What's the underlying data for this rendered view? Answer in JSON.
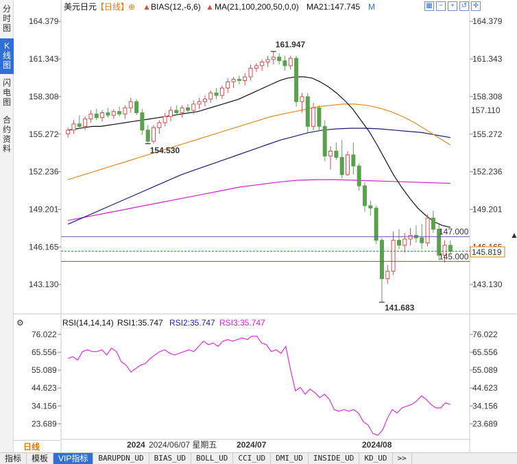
{
  "side_tabs": [
    {
      "label": "分时图",
      "active": false
    },
    {
      "label": "K线图",
      "active": true
    },
    {
      "label": "闪电图",
      "active": false
    },
    {
      "label": "合约资料",
      "active": false
    }
  ],
  "header": {
    "symbol": "美元日元",
    "period": "【日线】",
    "bias": "BIAS(12,-6,6)",
    "ma": "MA(21,100,200,50,0,0)",
    "ma21": "MA21:147.745",
    "m_label": "M",
    "icon_names": [
      "grid-icon",
      "zoom-out-icon",
      "zoom-in-icon",
      "restore-icon",
      "crosshair-icon"
    ]
  },
  "price_axis": {
    "ticks": [
      164.379,
      161.343,
      158.308,
      155.272,
      152.236,
      149.201,
      146.165,
      143.13
    ],
    "tick_labels": [
      "164.379",
      "161.343",
      "158.308",
      "155.272",
      "152.236",
      "149.201",
      "146.165",
      "143.130"
    ],
    "ylim": [
      141.2,
      165.0
    ],
    "right_badge_ma50": "157.110",
    "right_badge_last": "145.819"
  },
  "annotations": {
    "high": "161.947",
    "low1": "154.530",
    "low2": "141.683",
    "level_upper": "147.000",
    "level_lower": "145.000"
  },
  "rsi": {
    "title": "RSI(14,14,14)",
    "rsi1": "RSI1:35.747",
    "rsi2": "RSI2:35.747",
    "rsi3": "RSI3:35.747",
    "tick_labels": [
      "76.022",
      "65.556",
      "55.089",
      "44.623",
      "34.156",
      "23.689"
    ],
    "ticks": [
      76.022,
      65.556,
      55.089,
      44.623,
      34.156,
      23.689
    ],
    "ylim": [
      15.0,
      80.0
    ],
    "values": [
      62,
      63,
      61,
      66,
      67,
      66,
      66,
      67,
      64,
      68,
      66,
      60,
      58,
      54,
      56,
      58,
      59,
      62,
      64,
      66,
      67,
      65,
      64,
      65,
      66,
      67,
      66,
      69,
      72,
      70,
      71,
      69,
      72,
      73,
      72,
      73,
      74,
      73,
      75,
      75,
      71,
      70,
      66,
      67,
      65,
      69,
      55,
      43,
      45,
      41,
      44,
      42,
      39,
      41,
      38,
      32,
      31,
      32,
      31,
      32,
      30,
      25,
      23,
      18,
      17,
      20,
      27,
      32,
      30,
      33,
      34,
      35,
      37,
      40,
      38,
      35,
      33,
      33,
      36,
      35
    ]
  },
  "x_axis": {
    "labels": [
      "2024",
      "2024/07",
      "2024/08"
    ],
    "cursor_label": "2024/06/07 星期五"
  },
  "period_tab": "日线",
  "indicator_tabs": [
    {
      "label": "指标",
      "active": false
    },
    {
      "label": "模板",
      "active": false
    },
    {
      "label": "VIP指标",
      "active": true
    },
    {
      "label": "BARUPDN_UD",
      "active": false
    },
    {
      "label": "BIAS_UD",
      "active": false
    },
    {
      "label": "BOLL_UD",
      "active": false
    },
    {
      "label": "CCI_UD",
      "active": false
    },
    {
      "label": "DMI_UD",
      "active": false
    },
    {
      "label": "INSIDE_UD",
      "active": false
    },
    {
      "label": "KD_UD",
      "active": false
    },
    {
      "label": ">>",
      "active": false
    }
  ],
  "colors": {
    "up": "#d94a4a",
    "down": "#5aa14f",
    "ma21": "#111111",
    "ma50": "#e08a1e",
    "ma100": "#1b1b6e",
    "ma200": "#cc22cc",
    "rsi": "#e02ee0",
    "level_line": "#6a4fa0",
    "last_line": "#1f8fa8"
  },
  "chart_data": {
    "type": "candlestick",
    "title": "美元日元 日线",
    "ohlc": [
      [
        155.3,
        155.8,
        155.0,
        155.6
      ],
      [
        155.6,
        156.4,
        155.3,
        156.1
      ],
      [
        156.1,
        156.8,
        155.7,
        155.9
      ],
      [
        155.9,
        156.7,
        155.6,
        156.5
      ],
      [
        156.5,
        157.2,
        156.2,
        156.9
      ],
      [
        156.9,
        157.3,
        156.4,
        156.6
      ],
      [
        156.6,
        157.2,
        156.3,
        157.0
      ],
      [
        157.0,
        157.4,
        156.6,
        156.8
      ],
      [
        156.8,
        157.3,
        156.5,
        157.1
      ],
      [
        157.1,
        157.5,
        156.7,
        156.9
      ],
      [
        156.9,
        157.6,
        156.5,
        157.4
      ],
      [
        157.4,
        158.2,
        157.0,
        157.9
      ],
      [
        157.9,
        158.1,
        156.8,
        157.0
      ],
      [
        157.0,
        157.3,
        155.2,
        155.6
      ],
      [
        155.6,
        156.0,
        154.5,
        154.7
      ],
      [
        154.7,
        156.0,
        154.5,
        155.8
      ],
      [
        155.8,
        156.4,
        155.3,
        156.2
      ],
      [
        156.2,
        157.0,
        155.9,
        156.7
      ],
      [
        156.7,
        157.5,
        156.3,
        157.2
      ],
      [
        157.2,
        157.6,
        156.8,
        157.0
      ],
      [
        157.0,
        157.6,
        156.6,
        157.4
      ],
      [
        157.4,
        157.7,
        156.9,
        157.2
      ],
      [
        157.2,
        158.0,
        156.9,
        157.7
      ],
      [
        157.7,
        158.2,
        157.3,
        157.9
      ],
      [
        157.9,
        158.4,
        157.5,
        158.1
      ],
      [
        158.1,
        158.8,
        157.8,
        158.6
      ],
      [
        158.6,
        159.0,
        158.1,
        158.4
      ],
      [
        158.4,
        159.2,
        158.1,
        159.0
      ],
      [
        159.0,
        159.8,
        158.6,
        159.5
      ],
      [
        159.5,
        159.9,
        159.0,
        159.7
      ],
      [
        159.7,
        160.0,
        159.3,
        159.6
      ],
      [
        159.6,
        160.2,
        159.2,
        159.9
      ],
      [
        159.9,
        160.9,
        159.6,
        160.6
      ],
      [
        160.6,
        161.0,
        160.3,
        160.8
      ],
      [
        160.8,
        161.3,
        160.4,
        161.1
      ],
      [
        161.1,
        161.6,
        160.7,
        161.3
      ],
      [
        161.3,
        161.95,
        160.9,
        161.5
      ],
      [
        161.5,
        161.8,
        160.9,
        161.2
      ],
      [
        161.2,
        161.6,
        160.4,
        160.8
      ],
      [
        160.8,
        161.6,
        160.5,
        161.4
      ],
      [
        161.4,
        161.6,
        157.5,
        157.9
      ],
      [
        157.9,
        158.6,
        157.0,
        158.3
      ],
      [
        158.3,
        158.6,
        155.4,
        155.9
      ],
      [
        155.9,
        157.8,
        155.6,
        157.4
      ],
      [
        157.4,
        157.6,
        155.5,
        155.9
      ],
      [
        155.9,
        156.4,
        153.1,
        153.5
      ],
      [
        153.5,
        154.3,
        152.4,
        153.9
      ],
      [
        153.9,
        154.6,
        153.2,
        153.4
      ],
      [
        153.4,
        154.8,
        151.7,
        152.0
      ],
      [
        152.0,
        153.9,
        151.9,
        153.6
      ],
      [
        153.6,
        154.6,
        152.0,
        152.7
      ],
      [
        152.7,
        152.9,
        150.7,
        151.1
      ],
      [
        151.1,
        151.4,
        149.0,
        149.5
      ],
      [
        149.5,
        149.9,
        148.7,
        149.3
      ],
      [
        149.3,
        149.5,
        146.4,
        146.7
      ],
      [
        146.7,
        146.9,
        141.7,
        143.6
      ],
      [
        143.6,
        144.7,
        143.2,
        144.2
      ],
      [
        144.2,
        147.4,
        143.9,
        146.7
      ],
      [
        146.7,
        147.6,
        146.0,
        146.3
      ],
      [
        146.3,
        147.3,
        145.7,
        146.8
      ],
      [
        146.8,
        147.7,
        146.3,
        147.1
      ],
      [
        147.1,
        147.9,
        146.5,
        146.9
      ],
      [
        146.9,
        148.0,
        146.0,
        146.5
      ],
      [
        146.5,
        148.8,
        146.2,
        148.5
      ],
      [
        148.5,
        149.1,
        147.3,
        147.6
      ],
      [
        147.6,
        148.0,
        145.1,
        145.5
      ],
      [
        145.5,
        146.7,
        144.9,
        146.3
      ],
      [
        146.3,
        146.7,
        145.6,
        145.8
      ]
    ],
    "ma21": [
      155.6,
      155.7,
      155.8,
      155.9,
      155.9,
      156.0,
      156.1,
      156.2,
      156.3,
      156.4,
      156.5,
      156.6,
      156.7,
      156.8,
      156.9,
      157.0,
      157.1,
      157.3,
      157.5,
      157.7,
      157.9,
      158.1,
      158.4,
      158.7,
      159.0,
      159.3,
      159.6,
      159.8,
      159.9,
      159.9,
      159.8,
      159.5,
      159.1,
      158.6,
      158.0,
      157.3,
      156.4,
      155.5,
      154.4,
      153.2,
      152.0,
      151.0,
      150.1,
      149.3,
      148.7,
      148.2,
      147.9,
      147.745
    ],
    "ma50": [
      151.6,
      151.9,
      152.2,
      152.5,
      152.8,
      153.1,
      153.4,
      153.7,
      154.0,
      154.3,
      154.6,
      154.9,
      155.2,
      155.5,
      155.8,
      156.1,
      156.4,
      156.7,
      156.9,
      157.1,
      157.3,
      157.5,
      157.6,
      157.7,
      157.7,
      157.6,
      157.4,
      157.1,
      156.7,
      156.2,
      155.6,
      155.0,
      154.4
    ],
    "ma100": [
      148.0,
      148.5,
      149.0,
      149.5,
      150.0,
      150.5,
      151.0,
      151.5,
      152.0,
      152.4,
      152.8,
      153.2,
      153.6,
      154.0,
      154.4,
      154.8,
      155.1,
      155.4,
      155.6,
      155.7,
      155.75,
      155.75,
      155.7,
      155.6,
      155.5,
      155.4,
      155.2,
      155.0
    ],
    "ma200": [
      148.3,
      148.6,
      148.9,
      149.2,
      149.5,
      149.8,
      150.1,
      150.4,
      150.7,
      151.0,
      151.2,
      151.4,
      151.55,
      151.6,
      151.6,
      151.55,
      151.5,
      151.45,
      151.4,
      151.35,
      151.3
    ],
    "levels": [
      147.0,
      145.0
    ],
    "last": 145.819,
    "xlabel": "",
    "ylabel": ""
  }
}
